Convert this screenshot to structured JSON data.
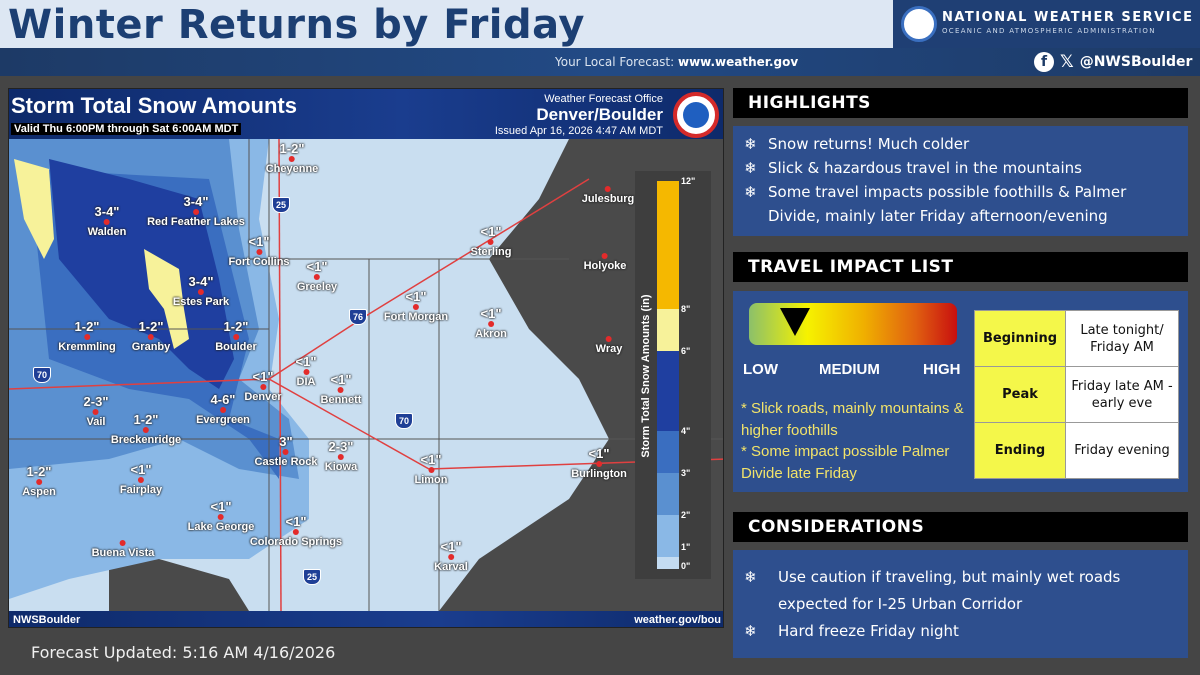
{
  "header": {
    "title": "Winter Returns by Friday",
    "agency": "NATIONAL WEATHER SERVICE",
    "agency_sub": "OCEANIC AND ATMOSPHERIC ADMINISTRATION",
    "local_label": "Your Local Forecast:",
    "local_url": "www.weather.gov",
    "social_handle": "@NWSBoulder",
    "social_icons": [
      "facebook-icon",
      "x-icon"
    ]
  },
  "map": {
    "title": "Storm Total Snow Amounts",
    "valid": "Valid Thu 6:00PM through Sat 6:00AM MDT",
    "office_label": "Weather Forecast Office",
    "office": "Denver/Boulder",
    "issued": "Issued Apr 16, 2026 4:47 AM MDT",
    "footer_left": "NWSBoulder",
    "footer_right": "weather.gov/bou",
    "legend_title": "Storm Total Snow Amounts (in)",
    "legend_ticks": [
      "12\"",
      "8\"",
      "6\"",
      "4\"",
      "3\"",
      "2\"",
      "1\"",
      "0\""
    ],
    "legend_colors": [
      "#f5b800",
      "#f7f29a",
      "#1f3fa0",
      "#3a6ec0",
      "#5a90d0",
      "#8ab8e6",
      "#c4dcf2"
    ],
    "highways": [
      "25",
      "76",
      "70",
      "70",
      "25"
    ],
    "cities": [
      {
        "name": "Cheyenne",
        "amount": "1-2\""
      },
      {
        "name": "Walden",
        "amount": "3-4\""
      },
      {
        "name": "Red Feather Lakes",
        "amount": "3-4\""
      },
      {
        "name": "Fort Collins",
        "amount": "<1\""
      },
      {
        "name": "Greeley",
        "amount": "<1\""
      },
      {
        "name": "Estes Park",
        "amount": "3-4\""
      },
      {
        "name": "Kremmling",
        "amount": "1-2\""
      },
      {
        "name": "Granby",
        "amount": "1-2\""
      },
      {
        "name": "Boulder",
        "amount": "1-2\""
      },
      {
        "name": "DIA",
        "amount": "<1\""
      },
      {
        "name": "Denver",
        "amount": "<1\""
      },
      {
        "name": "Bennett",
        "amount": "<1\""
      },
      {
        "name": "Fort Morgan",
        "amount": "<1\""
      },
      {
        "name": "Akron",
        "amount": "<1\""
      },
      {
        "name": "Sterling",
        "amount": "<1\""
      },
      {
        "name": "Julesburg",
        "amount": ""
      },
      {
        "name": "Holyoke",
        "amount": ""
      },
      {
        "name": "Wray",
        "amount": ""
      },
      {
        "name": "Vail",
        "amount": "2-3\""
      },
      {
        "name": "Breckenridge",
        "amount": "1-2\""
      },
      {
        "name": "Evergreen",
        "amount": "4-6\""
      },
      {
        "name": "Castle Rock",
        "amount": "3\""
      },
      {
        "name": "Kiowa",
        "amount": "2-3\""
      },
      {
        "name": "Limon",
        "amount": "<1\""
      },
      {
        "name": "Burlington",
        "amount": "<1\""
      },
      {
        "name": "Aspen",
        "amount": "1-2\""
      },
      {
        "name": "Fairplay",
        "amount": "<1\""
      },
      {
        "name": "Lake George",
        "amount": "<1\""
      },
      {
        "name": "Colorado Springs",
        "amount": "<1\""
      },
      {
        "name": "Buena Vista",
        "amount": ""
      },
      {
        "name": "Karval",
        "amount": "<1\""
      }
    ]
  },
  "forecast_updated": "Forecast Updated: 5:16 AM 4/16/2026",
  "highlights": {
    "title": "HIGHLIGHTS",
    "items": [
      "Snow returns! Much colder",
      "Slick & hazardous travel in the mountains",
      "Some travel impacts possible foothills & Palmer Divide, mainly later Friday afternoon/evening"
    ]
  },
  "travel": {
    "title": "TRAVEL IMPACT LIST",
    "levels": [
      "LOW",
      "MEDIUM",
      "HIGH"
    ],
    "impact_level_percent": 22,
    "notes": [
      "* Slick roads, mainly mountains & higher foothills",
      "* Some impact possible Palmer Divide late Friday"
    ],
    "timing": [
      {
        "label": "Beginning",
        "value": "Late tonight/ Friday AM"
      },
      {
        "label": "Peak",
        "value": "Friday late AM - early eve"
      },
      {
        "label": "Ending",
        "value": "Friday evening"
      }
    ]
  },
  "considerations": {
    "title": "CONSIDERATIONS",
    "items": [
      "Use caution if traveling, but mainly wet roads expected for I-25 Urban Corridor",
      "Hard freeze Friday night"
    ]
  },
  "bullet_icon": "snowflake-icon"
}
